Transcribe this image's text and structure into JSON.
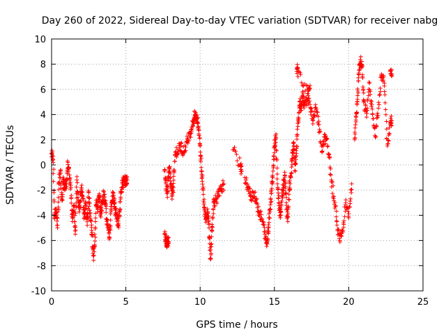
{
  "chart_data": {
    "type": "scatter",
    "title": "Day 260 of 2022, Sidereal Day-to-day VTEC variation (SDTVAR) for receiver nabg",
    "xlabel": "GPS time / hours",
    "ylabel": "SDTVAR / TECUs",
    "xlim": [
      0,
      25
    ],
    "ylim": [
      -10,
      10
    ],
    "xticks": [
      "0",
      "5",
      "10",
      "15",
      "20",
      "25"
    ],
    "yticks": [
      "10",
      "8",
      "6",
      "4",
      "2",
      "0",
      "-2",
      "-4",
      "-6",
      "-8",
      "-10"
    ],
    "grid": true,
    "marker": "plus",
    "color": "#ff0000",
    "segments": [
      {
        "x": [
          0.0,
          0.1,
          0.2,
          0.3,
          0.4,
          0.5,
          0.6,
          0.7,
          0.8,
          0.9,
          1.0,
          1.1,
          1.2,
          1.3,
          1.4,
          1.5,
          1.6,
          1.7,
          1.8,
          1.9,
          2.0,
          2.1,
          2.2,
          2.3,
          2.4,
          2.5,
          2.6,
          2.7,
          2.8,
          2.9,
          3.0,
          3.1,
          3.2,
          3.3,
          3.4,
          3.5,
          3.6,
          3.7,
          3.8,
          3.9,
          4.0,
          4.1,
          4.2,
          4.3,
          4.4,
          4.5,
          4.6,
          4.7,
          4.8,
          4.9,
          5.0,
          5.1
        ],
        "y": [
          0.9,
          0.7,
          -4.2,
          -3.5,
          -4.8,
          -1.5,
          -0.5,
          -2.8,
          -1.2,
          -2.0,
          -1.5,
          0.2,
          -0.8,
          -1.8,
          -4.5,
          -3.2,
          -5.5,
          -1.2,
          -2.8,
          -3.5,
          -1.8,
          -2.5,
          -4.2,
          -3.0,
          -4.8,
          -2.2,
          -3.8,
          -5.2,
          -7.2,
          -6.5,
          -2.8,
          -3.5,
          -2.5,
          -3.9,
          -3.0,
          -2.4,
          -2.8,
          -4.3,
          -4.8,
          -5.8,
          -3.5,
          -2.5,
          -2.8,
          -3.6,
          -4.2,
          -4.8,
          -3.5,
          -1.8,
          -1.4,
          -1.3,
          -1.2,
          -1.2
        ]
      },
      {
        "x": [
          7.6,
          7.7,
          7.75,
          7.8,
          7.9
        ],
        "y": [
          -5.5,
          -6.0,
          -6.3,
          -5.8,
          -6.2
        ]
      },
      {
        "x": [
          7.6,
          7.7,
          7.8,
          7.9,
          8.0,
          8.1,
          8.2,
          8.3,
          8.5,
          8.7,
          8.9,
          9.1,
          9.3,
          9.5,
          9.6,
          9.7,
          9.8,
          9.9,
          10.0,
          10.1,
          10.2,
          10.3,
          10.4,
          10.5,
          10.6,
          10.7,
          10.8,
          10.9,
          11.0,
          11.2,
          11.4,
          11.6
        ],
        "y": [
          -0.5,
          -1.5,
          -2.2,
          -0.2,
          -1.0,
          -2.5,
          -1.8,
          0.8,
          1.2,
          1.5,
          1.0,
          1.8,
          2.5,
          3.2,
          3.8,
          3.9,
          3.7,
          2.8,
          1.5,
          -0.5,
          -2.0,
          -3.5,
          -4.2,
          -3.8,
          -5.0,
          -7.5,
          -5.2,
          -3.0,
          -2.8,
          -2.5,
          -2.0,
          -1.5
        ]
      },
      {
        "x": [
          12.2,
          12.7,
          12.8
        ],
        "y": [
          1.2,
          0.0,
          -0.5
        ]
      },
      {
        "x": [
          13.0,
          13.2,
          13.4,
          13.6,
          13.8,
          14.0,
          14.2,
          14.4,
          14.5,
          14.6,
          14.7,
          14.8,
          14.9,
          15.0,
          15.1,
          15.2,
          15.3,
          15.4,
          15.5,
          15.6,
          15.7,
          15.8,
          15.9,
          16.0,
          16.1,
          16.2,
          16.3,
          16.4,
          16.5,
          16.6,
          16.7,
          16.8,
          16.9,
          17.0,
          17.2,
          17.4,
          17.6,
          17.8,
          18.0,
          18.2,
          18.4,
          18.6,
          18.8,
          19.0,
          19.2,
          19.4,
          19.6,
          19.8,
          20.0,
          20.2
        ],
        "y": [
          -1.0,
          -1.8,
          -2.5,
          -2.2,
          -3.0,
          -3.8,
          -4.5,
          -5.8,
          -6.2,
          -5.0,
          -3.5,
          -2.0,
          -0.5,
          1.5,
          2.2,
          -1.5,
          -3.0,
          -4.2,
          -2.5,
          -1.8,
          -0.8,
          -3.0,
          -4.5,
          -2.0,
          -1.0,
          0.5,
          1.8,
          -0.5,
          1.5,
          3.5,
          5.0,
          4.5,
          5.5,
          4.8,
          5.2,
          4.8,
          3.5,
          4.5,
          3.2,
          1.0,
          2.2,
          1.5,
          -0.8,
          -2.5,
          -4.5,
          -6.0,
          -5.2,
          -3.0,
          -4.2,
          -1.5
        ]
      },
      {
        "x": [
          16.5,
          16.6,
          17.2,
          17.4
        ],
        "y": [
          7.6,
          7.4,
          6.0,
          6.3
        ]
      },
      {
        "x": [
          20.4,
          20.5,
          20.6,
          20.7,
          20.8,
          20.9,
          21.0,
          21.2,
          21.4,
          21.6,
          21.8,
          22.0,
          22.2,
          22.4,
          22.6,
          22.8,
          22.9
        ],
        "y": [
          2.0,
          3.8,
          5.5,
          7.5,
          8.2,
          7.8,
          5.0,
          3.8,
          6.5,
          4.0,
          2.2,
          4.5,
          7.2,
          6.5,
          1.5,
          3.2,
          3.5
        ]
      },
      {
        "x": [
          22.8,
          22.9
        ],
        "y": [
          7.5,
          7.2
        ]
      }
    ]
  }
}
